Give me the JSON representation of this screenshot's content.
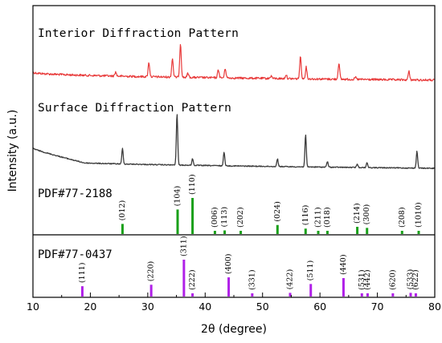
{
  "chart_data": {
    "type": "line",
    "xlabel": "2θ (degree)",
    "ylabel": "Intensity (a.u.)",
    "xlim": [
      10,
      80
    ],
    "x_ticks": [
      "10",
      "20",
      "30",
      "40",
      "50",
      "60",
      "70",
      "80"
    ],
    "y_ticks": "none",
    "grid": false,
    "series": [
      {
        "name": "Interior Diffraction Pattern",
        "color": "#e83a3a",
        "style": "noisy line",
        "peaks": [
          {
            "x": 24.4,
            "h": 0.12
          },
          {
            "x": 30.2,
            "h": 0.42
          },
          {
            "x": 34.3,
            "h": 0.55
          },
          {
            "x": 35.7,
            "h": 1.0
          },
          {
            "x": 37.0,
            "h": 0.12
          },
          {
            "x": 42.3,
            "h": 0.24
          },
          {
            "x": 43.5,
            "h": 0.28
          },
          {
            "x": 51.5,
            "h": 0.08
          },
          {
            "x": 54.1,
            "h": 0.12
          },
          {
            "x": 56.6,
            "h": 0.65
          },
          {
            "x": 57.6,
            "h": 0.35
          },
          {
            "x": 63.3,
            "h": 0.48
          },
          {
            "x": 66.2,
            "h": 0.06
          },
          {
            "x": 75.5,
            "h": 0.25
          }
        ]
      },
      {
        "name": "Surface Diffraction Pattern",
        "color": "#3c3c3c",
        "style": "noisy line",
        "peaks": [
          {
            "x": 25.6,
            "h": 0.3
          },
          {
            "x": 35.1,
            "h": 1.0
          },
          {
            "x": 37.8,
            "h": 0.13
          },
          {
            "x": 43.3,
            "h": 0.27
          },
          {
            "x": 52.6,
            "h": 0.15
          },
          {
            "x": 57.5,
            "h": 0.62
          },
          {
            "x": 61.3,
            "h": 0.11
          },
          {
            "x": 66.5,
            "h": 0.07
          },
          {
            "x": 68.2,
            "h": 0.1
          },
          {
            "x": 76.9,
            "h": 0.33
          }
        ]
      },
      {
        "name": "PDF#77-2188",
        "color": "#1aa01a",
        "style": "stick",
        "sticks": [
          {
            "x": 25.6,
            "hkl": "(012)",
            "h": 0.28
          },
          {
            "x": 35.2,
            "hkl": "(104)",
            "h": 0.68
          },
          {
            "x": 37.8,
            "hkl": "(110)",
            "h": 1.0
          },
          {
            "x": 41.7,
            "hkl": "(006)",
            "h": 0.05
          },
          {
            "x": 43.4,
            "hkl": "(113)",
            "h": 0.1
          },
          {
            "x": 46.2,
            "hkl": "(202)",
            "h": 0.06
          },
          {
            "x": 52.6,
            "hkl": "(024)",
            "h": 0.25
          },
          {
            "x": 57.5,
            "hkl": "(116)",
            "h": 0.15
          },
          {
            "x": 59.7,
            "hkl": "(211)",
            "h": 0.05
          },
          {
            "x": 61.3,
            "hkl": "(018)",
            "h": 0.07
          },
          {
            "x": 66.5,
            "hkl": "(214)",
            "h": 0.2
          },
          {
            "x": 68.2,
            "hkl": "(300)",
            "h": 0.17
          },
          {
            "x": 74.3,
            "hkl": "(208)",
            "h": 0.05
          },
          {
            "x": 77.2,
            "hkl": "(1010)",
            "h": 0.06
          }
        ]
      },
      {
        "name": "PDF#77-0437",
        "color": "#b020e8",
        "style": "stick",
        "sticks": [
          {
            "x": 18.6,
            "hkl": "(111)",
            "h": 0.28
          },
          {
            "x": 30.6,
            "hkl": "(220)",
            "h": 0.32
          },
          {
            "x": 36.3,
            "hkl": "(311)",
            "h": 1.0
          },
          {
            "x": 37.8,
            "hkl": "(222)",
            "h": 0.07
          },
          {
            "x": 44.1,
            "hkl": "(400)",
            "h": 0.52
          },
          {
            "x": 48.2,
            "hkl": "(331)",
            "h": 0.05
          },
          {
            "x": 54.8,
            "hkl": "(422)",
            "h": 0.1
          },
          {
            "x": 58.4,
            "hkl": "(511)",
            "h": 0.34
          },
          {
            "x": 64.1,
            "hkl": "(440)",
            "h": 0.5
          },
          {
            "x": 67.3,
            "hkl": "(531)",
            "h": 0.08
          },
          {
            "x": 68.3,
            "hkl": "(442)",
            "h": 0.06
          },
          {
            "x": 72.7,
            "hkl": "(620)",
            "h": 0.05
          },
          {
            "x": 75.8,
            "hkl": "(533)",
            "h": 0.1
          },
          {
            "x": 76.7,
            "hkl": "(622)",
            "h": 0.07
          }
        ]
      }
    ]
  }
}
